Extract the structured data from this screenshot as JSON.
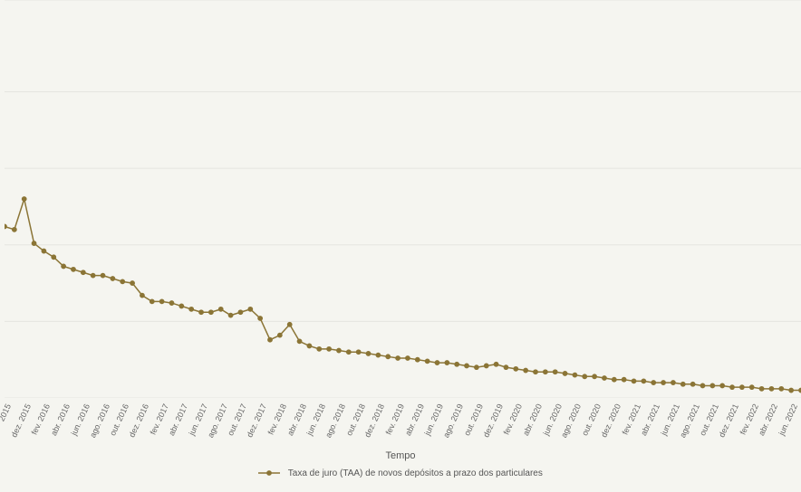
{
  "chart": {
    "type": "line",
    "background_color": "#f5f5f0",
    "grid_color": "#e5e5e0",
    "series_color": "#8b7536",
    "marker_radius": 2.4,
    "line_width": 1.5,
    "x_title": "Tempo",
    "legend_label": "Taxa de juro (TAA) de novos depósitos a prazo dos particulares",
    "ylim_min": 0.0,
    "ylim_max": 2.6,
    "gridline_y": [
      0.0,
      0.5,
      1.0,
      1.5,
      2.0,
      2.6
    ],
    "x_labels": [
      "2015",
      "dez. 2015",
      "fev. 2016",
      "abr. 2016",
      "jun. 2016",
      "ago. 2016",
      "out. 2016",
      "dez. 2016",
      "fev. 2017",
      "abr. 2017",
      "jun. 2017",
      "ago. 2017",
      "out. 2017",
      "dez. 2017",
      "fev. 2018",
      "abr. 2018",
      "jun. 2018",
      "ago. 2018",
      "out. 2018",
      "dez. 2018",
      "fev. 2019",
      "abr. 2019",
      "jun. 2019",
      "ago. 2019",
      "out. 2019",
      "dez. 2019",
      "fev. 2020",
      "abr. 2020",
      "jun. 2020",
      "ago. 2020",
      "out. 2020",
      "dez. 2020",
      "fev. 2021",
      "abr. 2021",
      "jun. 2021",
      "ago. 2021",
      "out. 2021",
      "dez. 2021",
      "fev. 2022",
      "abr. 2022",
      "jun. 2022"
    ],
    "data": [
      1.12,
      1.1,
      1.3,
      1.01,
      0.96,
      0.92,
      0.86,
      0.84,
      0.82,
      0.8,
      0.8,
      0.78,
      0.76,
      0.75,
      0.67,
      0.63,
      0.63,
      0.62,
      0.6,
      0.58,
      0.56,
      0.56,
      0.58,
      0.54,
      0.56,
      0.58,
      0.52,
      0.38,
      0.41,
      0.48,
      0.37,
      0.34,
      0.32,
      0.32,
      0.31,
      0.3,
      0.3,
      0.29,
      0.28,
      0.27,
      0.26,
      0.26,
      0.25,
      0.24,
      0.23,
      0.23,
      0.22,
      0.21,
      0.2,
      0.21,
      0.22,
      0.2,
      0.19,
      0.18,
      0.17,
      0.17,
      0.17,
      0.16,
      0.15,
      0.14,
      0.14,
      0.13,
      0.12,
      0.12,
      0.11,
      0.11,
      0.1,
      0.1,
      0.1,
      0.09,
      0.09,
      0.08,
      0.08,
      0.08,
      0.07,
      0.07,
      0.07,
      0.06,
      0.06,
      0.06,
      0.05,
      0.05
    ],
    "label_fontsize": 9,
    "title_fontsize": 11
  }
}
